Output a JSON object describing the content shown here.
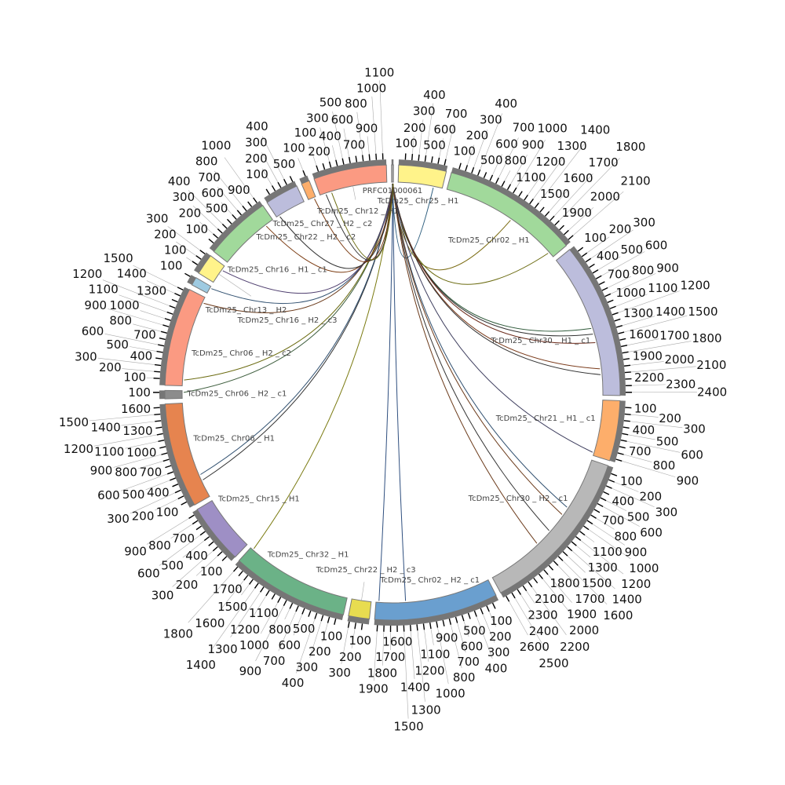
{
  "chart_data": {
    "type": "chord",
    "title": "",
    "tick_step": 100,
    "segments": [
      {
        "name": "PRFC01000061",
        "length": 30,
        "color": "#aaaaaa"
      },
      {
        "name": "TcDm25_Chr25_H1",
        "length": 750,
        "color": "#fff38a"
      },
      {
        "name": "TcDm25_Chr02_H1",
        "length": 2150,
        "color": "#a1d99b"
      },
      {
        "name": "TcDm25_Chr30_H1_c1",
        "length": 2450,
        "color": "#bcbddc"
      },
      {
        "name": "TcDm25_Chr21_H1_c1",
        "length": 950,
        "color": "#fdae6b"
      },
      {
        "name": "TcDm25_Chr30_H2_c1",
        "length": 2650,
        "color": "#b8b8b8"
      },
      {
        "name": "TcDm25_Chr02_H2_c1",
        "length": 1950,
        "color": "#6a9fcf"
      },
      {
        "name": "TcDm25_Chr22_H2_c3",
        "length": 330,
        "color": "#e8dc50"
      },
      {
        "name": "TcDm25_Chr32_H1",
        "length": 1850,
        "color": "#6bb287"
      },
      {
        "name": "TcDm25_Chr15_H1",
        "length": 950,
        "color": "#9e8fc5"
      },
      {
        "name": "TcDm25_Chr06_H1",
        "length": 1650,
        "color": "#e6844f"
      },
      {
        "name": "TcDm25_Chr06_H2_c1",
        "length": 130,
        "color": "#8c8c8c"
      },
      {
        "name": "TcDm25_Chr06_H2_c2",
        "length": 1550,
        "color": "#fb9a82"
      },
      {
        "name": "TcDm25_Chr13_H2",
        "length": 130,
        "color": "#9ecae1"
      },
      {
        "name": "TcDm25_Chr16_H2_c3",
        "length": 330,
        "color": "#fff38a"
      },
      {
        "name": "TcDm25_Chr16_H1_c1",
        "length": 1050,
        "color": "#a1d99b"
      },
      {
        "name": "TcDm25_Chr22_H2_c2",
        "length": 530,
        "color": "#bcbddc"
      },
      {
        "name": "TcDm25_Chr27_H2_c2",
        "length": 130,
        "color": "#fdae6b"
      },
      {
        "name": "TcDm25_Chr12_H1",
        "length": 1150,
        "color": "#fb9a82"
      }
    ],
    "links": [
      {
        "from": [
          "PRFC01000061",
          10
        ],
        "to": [
          "TcDm25_Chr25_H1",
          600
        ],
        "color": "#2f5f7f"
      },
      {
        "from": [
          "PRFC01000061",
          12
        ],
        "to": [
          "TcDm25_Chr02_H1",
          1200
        ],
        "color": "#7a6a10"
      },
      {
        "from": [
          "PRFC01000061",
          14
        ],
        "to": [
          "TcDm25_Chr02_H1",
          2050
        ],
        "color": "#6b6b10"
      },
      {
        "from": [
          "PRFC01000061",
          16
        ],
        "to": [
          "TcDm25_Chr30_H1_c1",
          1300
        ],
        "color": "#2f5a3a"
      },
      {
        "from": [
          "PRFC01000061",
          16
        ],
        "to": [
          "TcDm25_Chr30_H1_c1",
          1400
        ],
        "color": "#333333"
      },
      {
        "from": [
          "PRFC01000061",
          17
        ],
        "to": [
          "TcDm25_Chr30_H1_c1",
          1550
        ],
        "color": "#6b2a1a"
      },
      {
        "from": [
          "PRFC01000061",
          18
        ],
        "to": [
          "TcDm25_Chr30_H1_c1",
          2000
        ],
        "color": "#7a3a1a"
      },
      {
        "from": [
          "PRFC01000061",
          18
        ],
        "to": [
          "TcDm25_Chr30_H1_c1",
          2100
        ],
        "color": "#333333"
      },
      {
        "from": [
          "PRFC01000061",
          19
        ],
        "to": [
          "TcDm25_Chr21_H1_c1",
          900
        ],
        "color": "#3f3f5f"
      },
      {
        "from": [
          "PRFC01000061",
          20
        ],
        "to": [
          "TcDm25_Chr30_H2_c1",
          900
        ],
        "color": "#2f4f6f"
      },
      {
        "from": [
          "PRFC01000061",
          20
        ],
        "to": [
          "TcDm25_Chr30_H2_c1",
          1050
        ],
        "color": "#6b3a1a"
      },
      {
        "from": [
          "PRFC01000061",
          21
        ],
        "to": [
          "TcDm25_Chr30_H2_c1",
          1400
        ],
        "color": "#333333"
      },
      {
        "from": [
          "PRFC01000061",
          21
        ],
        "to": [
          "TcDm25_Chr30_H2_c1",
          1700
        ],
        "color": "#6b3a1a"
      },
      {
        "from": [
          "PRFC01000061",
          22
        ],
        "to": [
          "TcDm25_Chr02_H2_c1",
          1450
        ],
        "color": "#2f4f7f"
      },
      {
        "from": [
          "PRFC01000061",
          22
        ],
        "to": [
          "TcDm25_Chr02_H2_c1",
          1900
        ],
        "color": "#2f4f7f"
      },
      {
        "from": [
          "PRFC01000061",
          23
        ],
        "to": [
          "TcDm25_Chr32_H1",
          1800
        ],
        "color": "#7a7a10"
      },
      {
        "from": [
          "PRFC01000061",
          24
        ],
        "to": [
          "TcDm25_Chr06_H1",
          300
        ],
        "color": "#333333"
      },
      {
        "from": [
          "PRFC01000061",
          24
        ],
        "to": [
          "TcDm25_Chr06_H1",
          400
        ],
        "color": "#2f4f6f"
      },
      {
        "from": [
          "PRFC01000061",
          25
        ],
        "to": [
          "TcDm25_Chr06_H2_c1",
          100
        ],
        "color": "#3f5f3f"
      },
      {
        "from": [
          "PRFC01000061",
          25
        ],
        "to": [
          "TcDm25_Chr06_H2_c2",
          100
        ],
        "color": "#6b6b10"
      },
      {
        "from": [
          "PRFC01000061",
          26
        ],
        "to": [
          "TcDm25_Chr06_H2_c2",
          1450
        ],
        "color": "#6b3a1a"
      },
      {
        "from": [
          "PRFC01000061",
          26
        ],
        "to": [
          "TcDm25_Chr13_H2",
          100
        ],
        "color": "#2f4f6f"
      },
      {
        "from": [
          "PRFC01000061",
          27
        ],
        "to": [
          "TcDm25_Chr16_H2_c3",
          250
        ],
        "color": "#4f3f6f"
      },
      {
        "from": [
          "PRFC01000061",
          27
        ],
        "to": [
          "TcDm25_Chr16_H1_c1",
          900
        ],
        "color": "#7a3a10"
      },
      {
        "from": [
          "PRFC01000061",
          28
        ],
        "to": [
          "TcDm25_Chr22_H2_c2",
          50
        ],
        "color": "#333333"
      },
      {
        "from": [
          "PRFC01000061",
          28
        ],
        "to": [
          "TcDm25_Chr27_H2_c2",
          100
        ],
        "color": "#7a3a10"
      },
      {
        "from": [
          "PRFC01000061",
          29
        ],
        "to": [
          "TcDm25_Chr12_H1",
          100
        ],
        "color": "#333333"
      },
      {
        "from": [
          "PRFC01000061",
          29
        ],
        "to": [
          "TcDm25_Chr12_H1",
          200
        ],
        "color": "#6b6b10"
      }
    ]
  }
}
